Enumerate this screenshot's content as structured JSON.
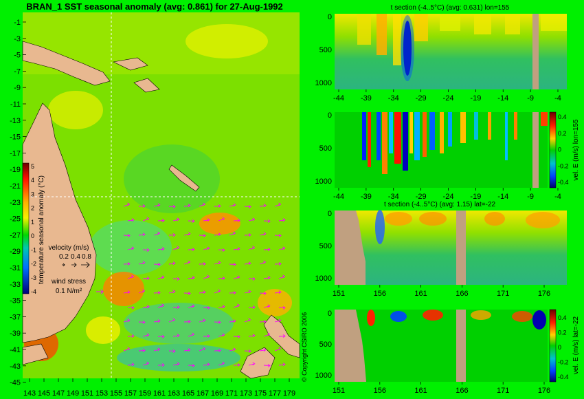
{
  "map": {
    "title": "BRAN_1 SST seasonal anomaly (avg: 0.861) for 27-Aug-1992",
    "lat_ticks": [
      "-1",
      "-3",
      "-5",
      "-7",
      "-9",
      "-11",
      "-13",
      "-15",
      "-17",
      "-19",
      "-21",
      "-23",
      "-25",
      "-27",
      "-29",
      "-31",
      "-33",
      "-35",
      "-37",
      "-39",
      "-41",
      "-43",
      "-45"
    ],
    "lon_ticks": [
      "143",
      "145",
      "147",
      "149",
      "151",
      "153",
      "155",
      "157",
      "159",
      "161",
      "163",
      "165",
      "167",
      "169",
      "171",
      "173",
      "175",
      "177",
      "179"
    ],
    "colorbar": {
      "label": "temperature seasonal anomaly (°C)",
      "ticks": [
        "5",
        "4",
        "3",
        "2",
        "1",
        "0",
        "-1",
        "-2",
        "-3",
        "-4"
      ]
    },
    "velocity_legend": {
      "title": "velocity (m/s)",
      "values": [
        "0.2",
        "0.4",
        "0.8"
      ]
    },
    "wind_legend": {
      "title": "wind stress",
      "value": "0.1 N/m²"
    },
    "copyright": "© Copyright CSIRO 2006"
  },
  "panels": [
    {
      "id": "t-section-lon",
      "title": "t section (-4..5°C) (avg: 0.631) lon=155",
      "x_ticks": [
        "-44",
        "-39",
        "-34",
        "-29",
        "-24",
        "-19",
        "-14",
        "-9",
        "-4"
      ],
      "y_ticks": [
        "0",
        "500",
        "1000"
      ],
      "colorbar": null
    },
    {
      "id": "vel-e-lon",
      "title": "",
      "x_ticks": [
        "-44",
        "-39",
        "-34",
        "-29",
        "-24",
        "-19",
        "-14",
        "-9",
        "-4"
      ],
      "y_ticks": [
        "0",
        "500",
        "1000"
      ],
      "colorbar": {
        "label": "vel. E (m/s) lon=155",
        "ticks": [
          "0.4",
          "0.2",
          "0",
          "-0.2",
          "-0.4"
        ]
      }
    },
    {
      "id": "t-section-lat",
      "title": "t section (-4..5°C) (avg: 1.15) lat=-22",
      "x_ticks": [
        "151",
        "156",
        "161",
        "166",
        "171",
        "176"
      ],
      "y_ticks": [
        "0",
        "500",
        "1000"
      ],
      "colorbar": null
    },
    {
      "id": "vel-e-lat",
      "title": "",
      "x_ticks": [
        "151",
        "156",
        "161",
        "166",
        "171",
        "176"
      ],
      "y_ticks": [
        "0",
        "500",
        "1000"
      ],
      "colorbar": {
        "label": "vel. E (m/s) lat=-22",
        "ticks": [
          "0.4",
          "0.2",
          "0",
          "-0.2",
          "-0.4"
        ]
      }
    }
  ],
  "chart_data": [
    {
      "type": "heatmap",
      "title": "BRAN_1 SST seasonal anomaly (avg: 0.861) for 27-Aug-1992",
      "xlim": [
        143,
        180
      ],
      "ylim": [
        -45,
        0
      ],
      "clim": [
        -4,
        5
      ],
      "units": "°C"
    },
    {
      "type": "heatmap",
      "title": "t section (-4..5°C) (avg: 0.631) lon=155",
      "xlim": [
        -45,
        -1
      ],
      "ylim": [
        1050,
        0
      ],
      "clim": [
        -4,
        5
      ]
    },
    {
      "type": "heatmap",
      "title": "",
      "xlim": [
        -45,
        -1
      ],
      "ylim": [
        1050,
        0
      ],
      "clim": [
        -0.4,
        0.4
      ]
    },
    {
      "type": "heatmap",
      "title": "t section (-4..5°C) (avg: 1.15) lat=-22",
      "xlim": [
        150,
        180
      ],
      "ylim": [
        1050,
        0
      ],
      "clim": [
        -4,
        5
      ]
    },
    {
      "type": "heatmap",
      "title": "",
      "xlim": [
        150,
        180
      ],
      "ylim": [
        1050,
        0
      ],
      "clim": [
        -0.4,
        0.4
      ]
    }
  ]
}
